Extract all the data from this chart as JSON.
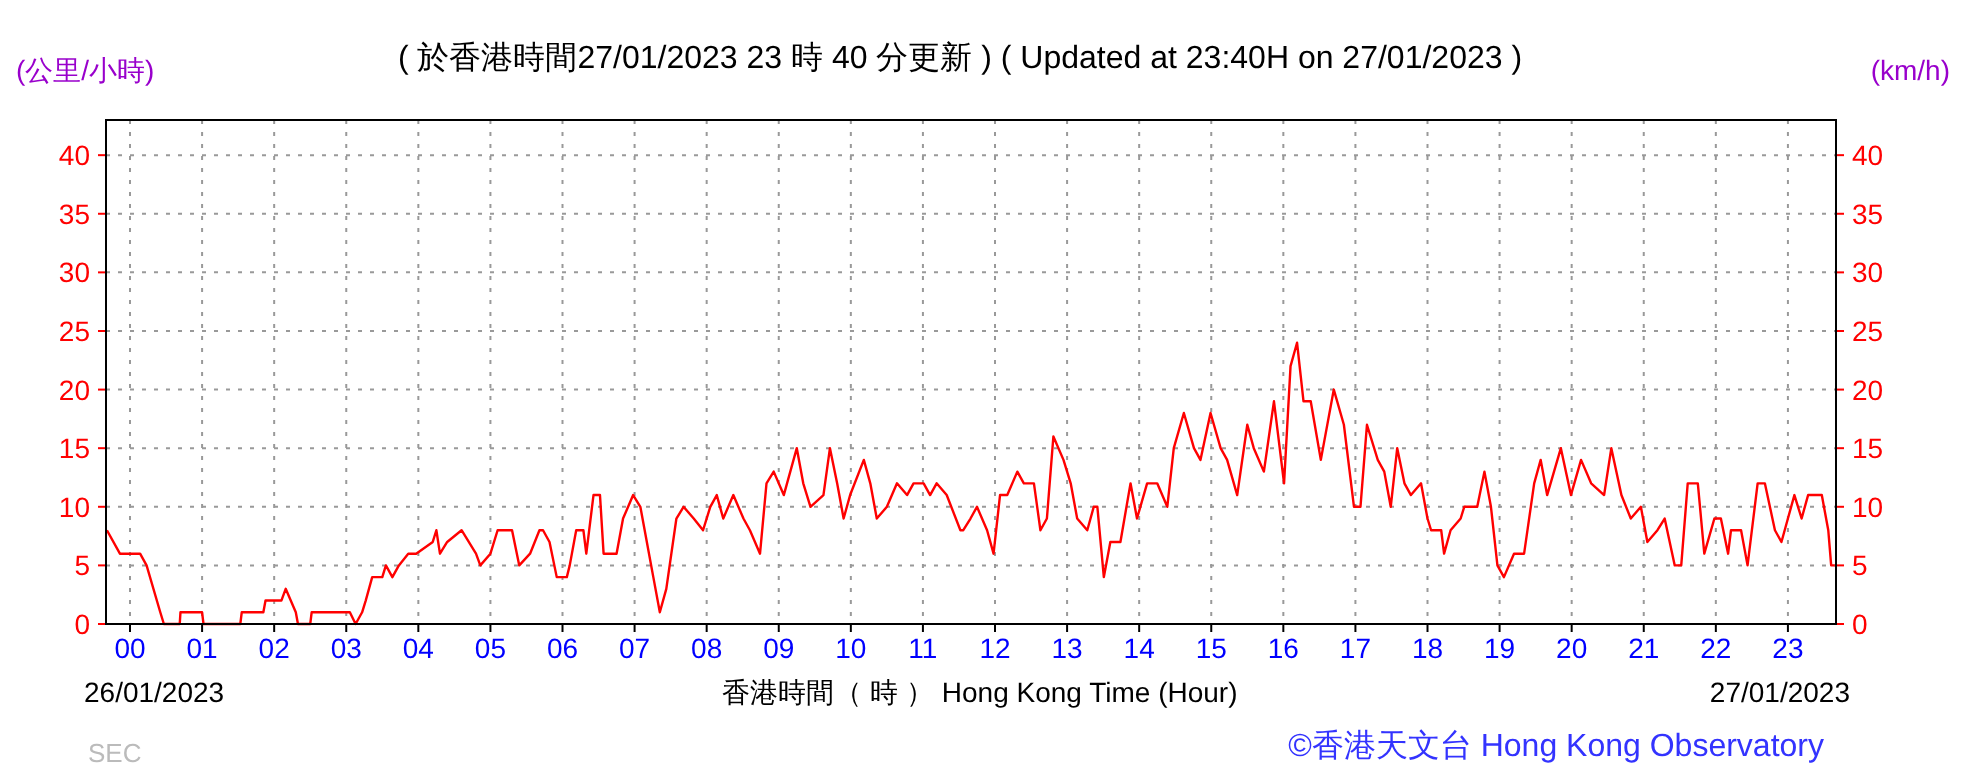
{
  "chart_data": {
    "type": "line",
    "title": "( 於香港時間27/01/2023 23 時 40 分更新 ) ( Updated at 23:40H on 27/01/2023 )",
    "ylabel": "(公里/小時)",
    "y2label": "(km/h)",
    "xlabel": "香港時間（ 時 ） Hong Kong Time (Hour)",
    "annotations": [
      "26/01/2023",
      "27/01/2023",
      "SEC",
      "©香港天文台 Hong Kong Observatory"
    ],
    "xlim": [
      -0.333,
      23.667
    ],
    "xticks": [
      {
        "value": 0,
        "label": "00"
      },
      {
        "value": 1,
        "label": "01"
      },
      {
        "value": 2,
        "label": "02"
      },
      {
        "value": 3,
        "label": "03"
      },
      {
        "value": 4,
        "label": "04"
      },
      {
        "value": 5,
        "label": "05"
      },
      {
        "value": 6,
        "label": "06"
      },
      {
        "value": 7,
        "label": "07"
      },
      {
        "value": 8,
        "label": "08"
      },
      {
        "value": 9,
        "label": "09"
      },
      {
        "value": 10,
        "label": "10"
      },
      {
        "value": 11,
        "label": "11"
      },
      {
        "value": 12,
        "label": "12"
      },
      {
        "value": 13,
        "label": "13"
      },
      {
        "value": 14,
        "label": "14"
      },
      {
        "value": 15,
        "label": "15"
      },
      {
        "value": 16,
        "label": "16"
      },
      {
        "value": 17,
        "label": "17"
      },
      {
        "value": 18,
        "label": "18"
      },
      {
        "value": 19,
        "label": "19"
      },
      {
        "value": 20,
        "label": "20"
      },
      {
        "value": 21,
        "label": "21"
      },
      {
        "value": 22,
        "label": "22"
      },
      {
        "value": 23,
        "label": "23"
      }
    ],
    "ylim": [
      0,
      43
    ],
    "yticks": [
      0,
      5,
      10,
      15,
      20,
      25,
      30,
      35,
      40
    ],
    "y2lim": [
      0,
      43
    ],
    "y2ticks": [
      0,
      5,
      10,
      15,
      20,
      25,
      30,
      35,
      40
    ],
    "grid": true,
    "marker": "none",
    "line_style": "solid",
    "series": [
      {
        "color": "#ff0000",
        "x": [
          -0.32,
          -0.14,
          0.14,
          0.23,
          0.42,
          0.47,
          0.69,
          0.7,
          1.0,
          1.02,
          1.53,
          1.55,
          1.85,
          1.88,
          2.1,
          2.16,
          2.3,
          2.33,
          2.5,
          2.52,
          3.05,
          3.13,
          3.22,
          3.27,
          3.36,
          3.5,
          3.55,
          3.64,
          3.73,
          3.86,
          3.97,
          4.2,
          4.25,
          4.3,
          4.4,
          4.6,
          4.8,
          4.86,
          5.0,
          5.1,
          5.3,
          5.4,
          5.55,
          5.68,
          5.73,
          5.82,
          5.92,
          6.06,
          6.1,
          6.19,
          6.29,
          6.33,
          6.43,
          6.52,
          6.57,
          6.75,
          6.84,
          6.98,
          7.08,
          7.17,
          7.26,
          7.35,
          7.44,
          7.58,
          7.68,
          7.82,
          7.95,
          8.05,
          8.14,
          8.23,
          8.37,
          8.51,
          8.6,
          8.74,
          8.83,
          8.93,
          9.07,
          9.25,
          9.34,
          9.44,
          9.62,
          9.71,
          9.81,
          9.9,
          9.99,
          10.18,
          10.27,
          10.36,
          10.5,
          10.64,
          10.78,
          10.87,
          11.01,
          11.1,
          11.19,
          11.33,
          11.52,
          11.56,
          11.66,
          11.75,
          11.89,
          11.98,
          12.07,
          12.17,
          12.31,
          12.4,
          12.54,
          12.63,
          12.72,
          12.81,
          12.95,
          13.05,
          13.14,
          13.28,
          13.37,
          13.42,
          13.51,
          13.6,
          13.74,
          13.88,
          13.97,
          14.11,
          14.25,
          14.39,
          14.48,
          14.62,
          14.76,
          14.85,
          14.99,
          15.13,
          15.22,
          15.36,
          15.5,
          15.59,
          15.73,
          15.87,
          16.01,
          16.1,
          16.19,
          16.28,
          16.38,
          16.52,
          16.7,
          16.84,
          16.98,
          17.07,
          17.16,
          17.31,
          17.4,
          17.49,
          17.58,
          17.68,
          17.77,
          17.91,
          18.0,
          18.05,
          18.19,
          18.23,
          18.32,
          18.46,
          18.51,
          18.69,
          18.79,
          18.88,
          18.97,
          19.06,
          19.2,
          19.34,
          19.48,
          19.57,
          19.66,
          19.85,
          19.99,
          20.13,
          20.27,
          20.45,
          20.55,
          20.69,
          20.82,
          20.96,
          21.05,
          21.19,
          21.29,
          21.43,
          21.52,
          21.61,
          21.75,
          21.84,
          21.98,
          22.07,
          22.17,
          22.21,
          22.35,
          22.44,
          22.58,
          22.68,
          22.82,
          22.91,
          23.0,
          23.09,
          23.19,
          23.28,
          23.47,
          23.56,
          23.6,
          23.65
        ],
        "values": [
          8,
          6,
          6,
          5,
          1,
          0,
          0,
          1,
          1,
          0,
          0,
          1,
          1,
          2,
          2,
          3,
          1,
          0,
          0,
          1,
          1,
          0,
          1,
          2,
          4,
          4,
          5,
          4,
          5,
          6,
          6,
          7,
          8,
          6,
          7,
          8,
          6,
          5,
          6,
          8,
          8,
          5,
          6,
          8,
          8,
          7,
          4,
          4,
          5,
          8,
          8,
          6,
          11,
          11,
          6,
          6,
          9,
          11,
          10,
          7,
          4,
          1,
          3,
          9,
          10,
          9,
          8,
          10,
          11,
          9,
          11,
          9,
          8,
          6,
          12,
          13,
          11,
          15,
          12,
          10,
          11,
          15,
          12,
          9,
          11,
          14,
          12,
          9,
          10,
          12,
          11,
          12,
          12,
          11,
          12,
          11,
          8,
          8,
          9,
          10,
          8,
          6,
          11,
          11,
          13,
          12,
          12,
          8,
          9,
          16,
          14,
          12,
          9,
          8,
          10,
          10,
          4,
          7,
          7,
          12,
          9,
          12,
          12,
          10,
          15,
          18,
          15,
          14,
          18,
          15,
          14,
          11,
          17,
          15,
          13,
          19,
          12,
          22,
          24,
          19,
          19,
          14,
          20,
          17,
          10,
          10,
          17,
          14,
          13,
          10,
          15,
          12,
          11,
          12,
          9,
          8,
          8,
          6,
          8,
          9,
          10,
          10,
          13,
          10,
          5,
          4,
          6,
          6,
          12,
          14,
          11,
          15,
          11,
          14,
          12,
          11,
          15,
          11,
          9,
          10,
          7,
          8,
          9,
          5,
          5,
          12,
          12,
          6,
          9,
          9,
          6,
          8,
          8,
          5,
          12,
          12,
          8,
          7,
          9,
          11,
          9,
          11,
          11,
          8,
          5,
          5
        ]
      }
    ]
  }
}
